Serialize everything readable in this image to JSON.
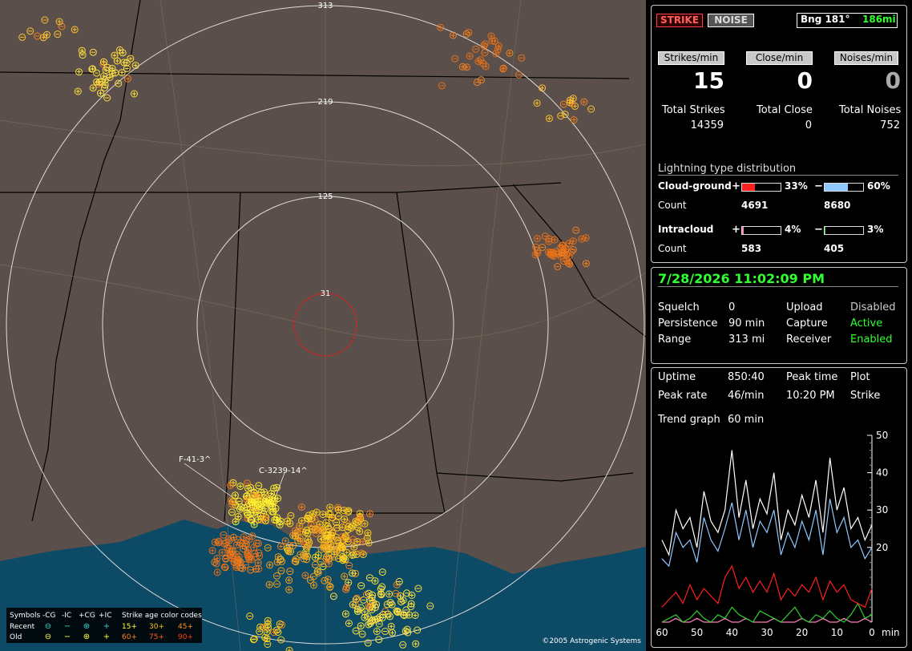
{
  "map": {
    "rings": [
      "313",
      "219",
      "125",
      "31"
    ],
    "storms": [
      "F-41-3^",
      "C-3239-14^"
    ],
    "copyright": "©2005 Astrogenic Systems",
    "legend": {
      "header": [
        "Symbols",
        "-CG",
        "-IC",
        "+CG",
        "+IC",
        "Strike age color codes"
      ],
      "rows": [
        {
          "label": "Recent",
          "symbols": [
            "⊖",
            "−",
            "⊕",
            "+"
          ],
          "ages": [
            "15+",
            "30+",
            "45+"
          ]
        },
        {
          "label": "Old",
          "symbols": [
            "⊖",
            "−",
            "⊕",
            "+"
          ],
          "ages": [
            "60+",
            "75+",
            "90+"
          ]
        }
      ]
    }
  },
  "status": {
    "strike": "STRIKE",
    "noise": "NOISE",
    "bearing": "Bng 181°",
    "distance": "186mi"
  },
  "rates": [
    {
      "label": "Strikes/min",
      "value": 15,
      "total_label": "Total Strikes",
      "total": 14359
    },
    {
      "label": "Close/min",
      "value": 0,
      "total_label": "Total Close",
      "total": 0
    },
    {
      "label": "Noises/min",
      "value": 0,
      "total_label": "Total Noises",
      "total": 752
    }
  ],
  "distribution": {
    "title": "Lightning type distribution",
    "count_label": "Count",
    "rows": [
      {
        "label": "Cloud-ground",
        "pos": {
          "sign": "+",
          "pct": {
            "value": 33,
            "label": "33%"
          },
          "count": 4691
        },
        "neg": {
          "sign": "−",
          "pct": {
            "value": 60,
            "label": "60%"
          },
          "count": 8680
        }
      },
      {
        "label": "Intracloud",
        "pos": {
          "sign": "+",
          "pct": {
            "value": 4,
            "label": "4%"
          },
          "count": 583
        },
        "neg": {
          "sign": "−",
          "pct": {
            "value": 3,
            "label": "3%"
          },
          "count": 405
        }
      }
    ]
  },
  "datetime": "7/28/2026 11:02:09 PM",
  "settings": [
    [
      "Squelch",
      "0",
      "Upload",
      "Disabled"
    ],
    [
      "Persistence",
      "90 min",
      "Capture",
      "Active"
    ],
    [
      "Range",
      "313 mi",
      "Receiver",
      "Enabled"
    ]
  ],
  "stats": [
    [
      "Uptime",
      "850:40",
      "Peak time",
      "Plot"
    ],
    [
      "Peak rate",
      "46/min",
      "10:20 PM",
      "Strike"
    ]
  ],
  "trend_label": "Trend graph",
  "trend_span": "60 min",
  "trend": {
    "ylim": [
      0,
      50
    ],
    "yticks": [
      20,
      30,
      40,
      50
    ],
    "xlim": [
      60,
      0
    ],
    "xticks": [
      60,
      50,
      40,
      30,
      20,
      10,
      0
    ],
    "x_unit": "min",
    "x": [
      60,
      58,
      56,
      54,
      52,
      50,
      48,
      46,
      44,
      42,
      40,
      38,
      36,
      34,
      32,
      30,
      28,
      26,
      24,
      22,
      20,
      18,
      16,
      14,
      12,
      10,
      8,
      6,
      4,
      2,
      0
    ],
    "series": [
      {
        "color": "#ffffff",
        "values": [
          22,
          18,
          30,
          25,
          28,
          20,
          35,
          27,
          24,
          30,
          46,
          28,
          38,
          25,
          33,
          29,
          40,
          22,
          30,
          26,
          34,
          28,
          38,
          24,
          44,
          30,
          36,
          25,
          28,
          22,
          26
        ]
      },
      {
        "color": "#8fc8ff",
        "values": [
          17,
          15,
          24,
          20,
          22,
          16,
          28,
          22,
          19,
          25,
          32,
          22,
          30,
          20,
          27,
          24,
          30,
          18,
          24,
          20,
          27,
          22,
          30,
          18,
          33,
          24,
          28,
          20,
          22,
          17,
          20
        ]
      },
      {
        "color": "#ff2020",
        "values": [
          4,
          6,
          8,
          5,
          10,
          6,
          9,
          7,
          5,
          12,
          15,
          9,
          12,
          8,
          11,
          8,
          13,
          6,
          9,
          7,
          10,
          8,
          12,
          6,
          11,
          8,
          10,
          6,
          5,
          4,
          9
        ]
      },
      {
        "color": "#30d030",
        "values": [
          0,
          1,
          2,
          0,
          1,
          3,
          1,
          0,
          2,
          1,
          4,
          2,
          1,
          0,
          3,
          2,
          1,
          0,
          2,
          4,
          1,
          0,
          2,
          1,
          3,
          1,
          0,
          2,
          5,
          1,
          2
        ]
      },
      {
        "color": "#ff80c0",
        "values": [
          0,
          0,
          1,
          0,
          0,
          1,
          0,
          0,
          0,
          1,
          0,
          0,
          1,
          0,
          0,
          0,
          1,
          0,
          0,
          0,
          1,
          0,
          0,
          1,
          0,
          0,
          1,
          0,
          0,
          1,
          0
        ]
      }
    ]
  }
}
